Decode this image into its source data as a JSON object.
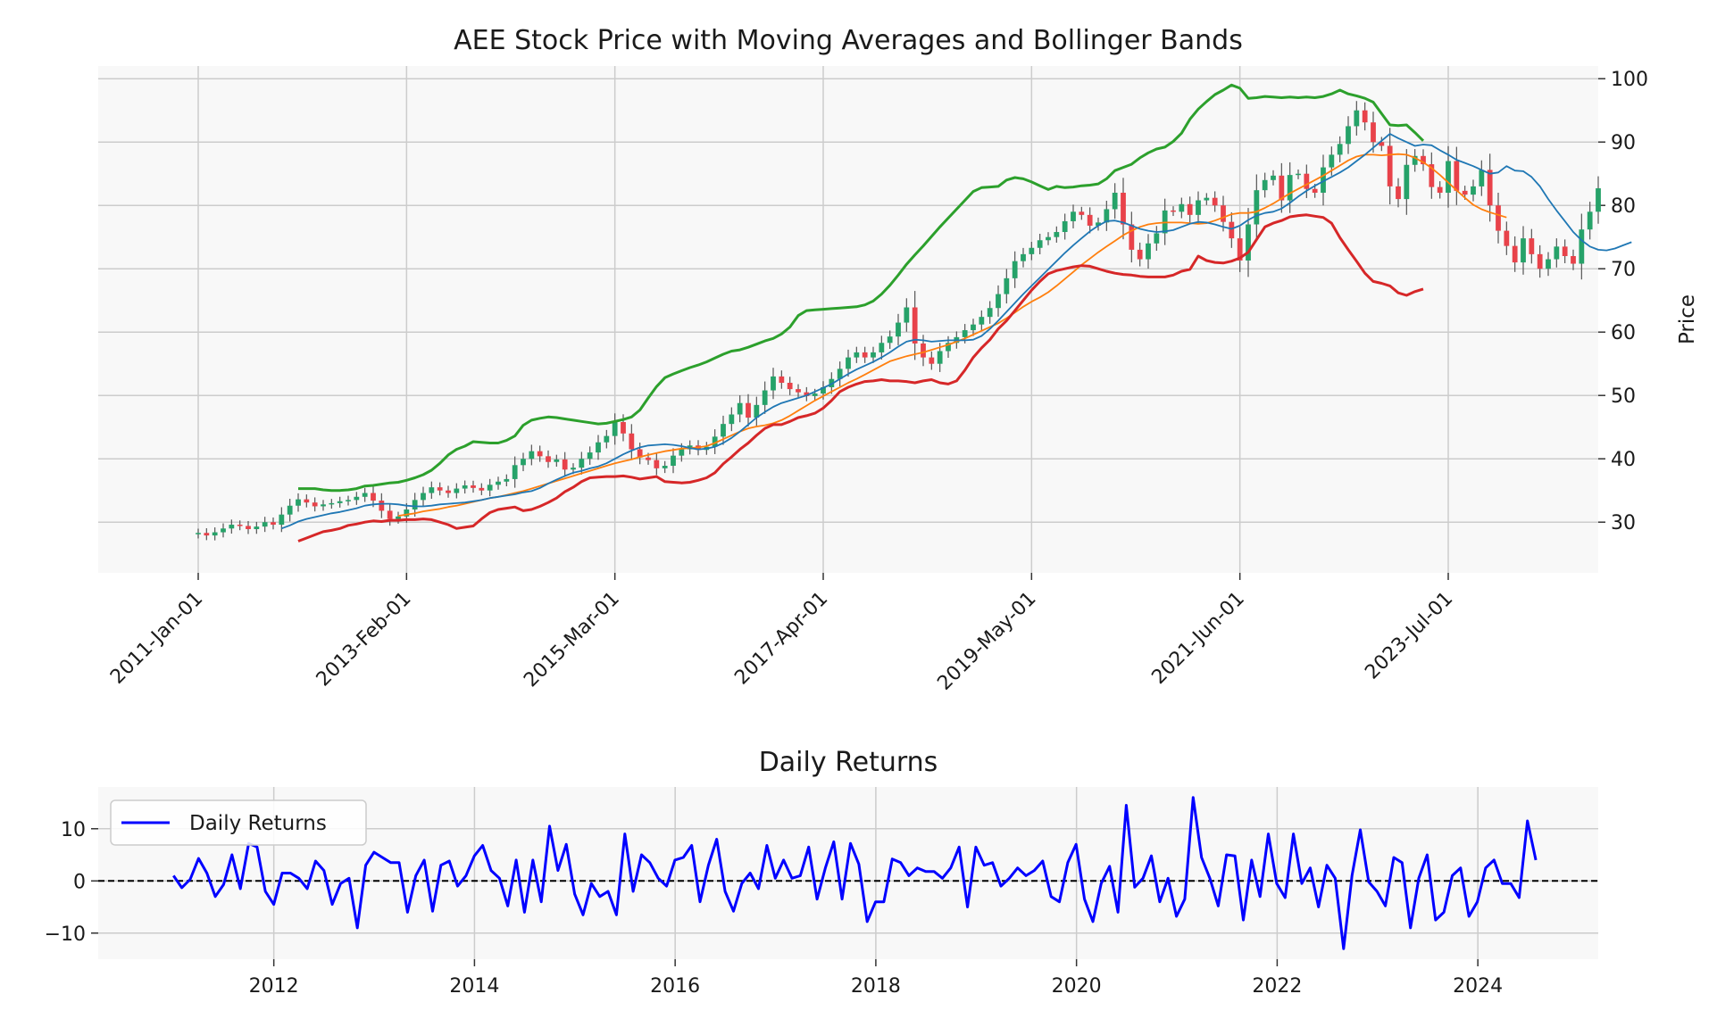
{
  "chart_data": [
    {
      "type": "candlestick",
      "title": "AEE Stock Price with Moving Averages and Bollinger Bands",
      "ylabel": "Price",
      "y_axis_side": "right",
      "ylim": [
        22,
        102
      ],
      "yticks": [
        30,
        40,
        50,
        60,
        70,
        80,
        90,
        100
      ],
      "xlim_months": [
        -12,
        168
      ],
      "xticks": [
        {
          "label": "2011-Jan-01",
          "month": 0
        },
        {
          "label": "2013-Feb-01",
          "month": 25
        },
        {
          "label": "2015-Mar-01",
          "month": 50
        },
        {
          "label": "2017-Apr-01",
          "month": 75
        },
        {
          "label": "2019-May-01",
          "month": 100
        },
        {
          "label": "2021-Jun-01",
          "month": 125
        },
        {
          "label": "2023-Jul-01",
          "month": 150
        }
      ],
      "grid": true,
      "colors": {
        "up": "#26a269",
        "down": "#e8424a",
        "wick": "#555555",
        "sma20": "#1f77b4",
        "sma50": "#ff7f0e",
        "bb_upper": "#2ca02c",
        "bb_lower": "#d62728"
      },
      "close": [
        28.3,
        27.9,
        28.4,
        29.0,
        29.6,
        29.4,
        28.9,
        29.3,
        30.0,
        29.6,
        31.2,
        32.6,
        33.6,
        33.1,
        32.5,
        32.8,
        33.0,
        33.3,
        33.5,
        34.0,
        34.6,
        33.4,
        31.8,
        30.5,
        30.9,
        32.0,
        33.5,
        34.6,
        35.5,
        35.0,
        34.6,
        35.3,
        35.8,
        35.4,
        35.0,
        35.9,
        36.4,
        36.8,
        39.0,
        40.0,
        41.2,
        40.4,
        39.5,
        39.9,
        38.3,
        38.6,
        40.0,
        41.0,
        42.6,
        43.6,
        45.8,
        44.0,
        41.5,
        40.2,
        39.8,
        38.5,
        38.9,
        40.5,
        41.5,
        42.1,
        41.4,
        41.9,
        43.5,
        45.5,
        47.0,
        48.8,
        46.5,
        48.5,
        50.8,
        53.0,
        52.0,
        51.0,
        50.5,
        49.9,
        50.3,
        51.3,
        52.6,
        54.2,
        56.0,
        56.8,
        56.0,
        56.8,
        58.3,
        59.3,
        61.5,
        63.9,
        58.2,
        56.0,
        55.0,
        57.0,
        58.3,
        59.2,
        60.3,
        61.2,
        62.4,
        63.8,
        66.0,
        68.5,
        71.2,
        72.3,
        73.3,
        74.5,
        75.0,
        75.8,
        77.5,
        79.0,
        78.5,
        76.8,
        77.3,
        79.4,
        82.0,
        77.0,
        73.0,
        71.5,
        74.0,
        75.6,
        79.2,
        79.0,
        80.2,
        78.5,
        80.8,
        81.2,
        80.0,
        77.4,
        74.8,
        71.3,
        77.0,
        82.4,
        84.0,
        84.7,
        80.8,
        84.8,
        85.0,
        82.6,
        82.0,
        86.0,
        88.0,
        89.7,
        92.5,
        95.0,
        93.1,
        90.0,
        89.4,
        83.0,
        81.0,
        86.4,
        87.8,
        86.5,
        82.9,
        82.0,
        87.0,
        82.3,
        81.7,
        83.0,
        85.6,
        80.0,
        76.0,
        73.6,
        71.0,
        74.8,
        72.3,
        70.0,
        71.5,
        73.5,
        72.0,
        70.8,
        76.2,
        79.0,
        82.7
      ],
      "sma20": {
        "start": 10,
        "values": [
          29.0,
          29.5,
          30.1,
          30.5,
          30.8,
          31.1,
          31.4,
          31.6,
          31.9,
          32.2,
          32.6,
          32.8,
          32.9,
          32.9,
          32.8,
          32.6,
          32.5,
          32.5,
          32.6,
          32.8,
          32.9,
          33.0,
          33.1,
          33.3,
          33.5,
          33.8,
          34.0,
          34.2,
          34.4,
          34.7,
          34.9,
          35.4,
          36.1,
          36.7,
          37.3,
          37.8,
          38.1,
          38.5,
          38.8,
          39.3,
          40.0,
          40.7,
          41.3,
          41.8,
          42.1,
          42.2,
          42.3,
          42.2,
          42.0,
          41.7,
          41.5,
          41.6,
          41.9,
          42.5,
          43.3,
          44.3,
          45.4,
          46.5,
          47.4,
          48.2,
          48.8,
          49.2,
          49.6,
          50.0,
          50.6,
          51.2,
          51.8,
          52.6,
          53.4,
          54.1,
          54.7,
          55.3,
          56.0,
          56.8,
          57.7,
          58.5,
          58.8,
          58.7,
          58.5,
          58.6,
          58.7,
          58.7,
          58.7,
          58.8,
          59.4,
          60.5,
          61.8,
          63.2,
          64.6,
          66.0,
          67.3,
          68.6,
          69.9,
          71.2,
          72.5,
          73.7,
          74.8,
          75.9,
          76.8,
          77.5,
          77.6,
          77.3,
          76.8,
          76.3,
          76.0,
          75.8,
          75.9,
          76.1,
          76.6,
          77.1,
          77.4,
          77.3,
          77.0,
          76.6,
          76.3,
          76.8,
          77.7,
          78.4,
          78.8,
          79.0,
          79.5,
          80.4,
          81.4,
          82.3,
          83.1,
          83.8,
          84.5,
          85.2,
          86.0,
          87.0,
          88.0,
          89.1,
          90.2,
          91.3,
          90.6,
          90.0,
          89.4,
          89.6,
          89.5,
          88.7,
          88.0,
          87.2,
          86.7,
          86.2,
          85.6,
          85.0,
          85.2,
          86.2,
          85.5,
          85.4,
          84.5,
          83.0,
          81.0,
          79.2,
          77.5,
          75.8,
          74.5,
          73.5,
          73.0,
          72.9,
          73.2,
          73.7,
          74.2
        ]
      },
      "sma50": {
        "start": 24,
        "values": [
          31.0,
          31.2,
          31.4,
          31.7,
          31.9,
          32.1,
          32.4,
          32.6,
          32.9,
          33.2,
          33.5,
          33.8,
          34.0,
          34.3,
          34.6,
          34.9,
          35.3,
          35.7,
          36.1,
          36.5,
          36.9,
          37.3,
          37.7,
          38.1,
          38.5,
          38.9,
          39.3,
          39.6,
          39.9,
          40.3,
          40.6,
          40.9,
          41.2,
          41.4,
          41.6,
          41.7,
          41.8,
          42.0,
          42.5,
          43.1,
          43.7,
          44.3,
          44.8,
          45.1,
          45.3,
          45.6,
          46.1,
          46.8,
          47.6,
          48.4,
          49.2,
          49.9,
          50.6,
          51.3,
          52.0,
          52.6,
          53.3,
          54.0,
          54.7,
          55.4,
          55.8,
          56.2,
          56.5,
          56.8,
          57.2,
          57.6,
          58.0,
          58.5,
          59.0,
          59.6,
          60.2,
          60.8,
          61.4,
          62.2,
          63.1,
          64.0,
          64.8,
          65.5,
          66.3,
          67.3,
          68.4,
          69.5,
          70.6,
          71.6,
          72.6,
          73.5,
          74.4,
          75.3,
          76.0,
          76.6,
          77.0,
          77.2,
          77.3,
          77.3,
          77.3,
          77.2,
          77.1,
          77.2,
          77.6,
          78.1,
          78.6,
          78.8,
          78.8,
          79.0,
          79.6,
          80.3,
          81.1,
          81.9,
          82.6,
          83.3,
          84.0,
          84.7,
          85.5,
          86.3,
          87.1,
          87.7,
          88.0,
          88.0,
          87.9,
          88.0,
          88.1,
          88.0,
          87.5,
          86.8,
          85.9,
          84.8,
          83.6,
          82.4,
          81.2,
          80.1,
          79.4,
          78.9,
          78.5,
          78.1
        ]
      },
      "bb_upper": {
        "start": 12,
        "values": [
          35.3,
          35.3,
          35.3,
          35.1,
          35.0,
          35.0,
          35.1,
          35.3,
          35.7,
          35.8,
          36.0,
          36.2,
          36.3,
          36.6,
          37.0,
          37.5,
          38.2,
          39.3,
          40.6,
          41.5,
          42.0,
          42.7,
          42.6,
          42.5,
          42.5,
          42.9,
          43.6,
          45.3,
          46.1,
          46.4,
          46.6,
          46.5,
          46.3,
          46.1,
          45.9,
          45.7,
          45.5,
          45.6,
          45.9,
          46.2,
          46.6,
          47.7,
          49.6,
          51.4,
          52.8,
          53.4,
          53.9,
          54.4,
          54.8,
          55.3,
          55.9,
          56.5,
          57.0,
          57.2,
          57.6,
          58.1,
          58.6,
          59.0,
          59.7,
          60.8,
          62.6,
          63.4,
          63.5,
          63.6,
          63.7,
          63.8,
          63.9,
          64.0,
          64.3,
          64.9,
          66.0,
          67.4,
          69.0,
          70.7,
          72.2,
          73.6,
          75.1,
          76.6,
          78.0,
          79.4,
          80.8,
          82.2,
          82.8,
          82.9,
          83.0,
          84.0,
          84.4,
          84.2,
          83.7,
          83.1,
          82.5,
          83.0,
          82.8,
          82.9,
          83.1,
          83.2,
          83.4,
          84.2,
          85.5,
          86.0,
          86.5,
          87.5,
          88.3,
          88.9,
          89.2,
          90.1,
          91.4,
          93.6,
          95.2,
          96.4,
          97.5,
          98.2,
          99.0,
          98.5,
          96.9,
          97.0,
          97.2,
          97.1,
          97.0,
          97.1,
          97.0,
          97.1,
          97.0,
          97.2,
          97.6,
          98.2,
          97.6,
          97.3,
          96.9,
          96.3,
          94.5,
          92.7,
          92.6,
          92.7,
          91.5,
          90.2
        ]
      },
      "bb_lower": {
        "start": 12,
        "values": [
          27.0,
          27.5,
          28.0,
          28.5,
          28.7,
          29.0,
          29.5,
          29.7,
          30.0,
          30.2,
          30.1,
          30.3,
          30.3,
          30.4,
          30.4,
          30.5,
          30.4,
          30.0,
          29.6,
          29.0,
          29.2,
          29.4,
          30.5,
          31.5,
          32.0,
          32.2,
          32.4,
          31.8,
          32.0,
          32.5,
          33.1,
          33.8,
          34.8,
          35.5,
          36.4,
          37.0,
          37.1,
          37.2,
          37.2,
          37.3,
          37.1,
          36.8,
          37.0,
          37.2,
          36.4,
          36.3,
          36.2,
          36.3,
          36.6,
          37.0,
          37.8,
          39.2,
          40.3,
          41.5,
          42.5,
          43.7,
          44.8,
          45.4,
          45.4,
          45.9,
          46.5,
          46.8,
          47.2,
          48.0,
          49.2,
          50.6,
          51.3,
          51.8,
          52.2,
          52.3,
          52.5,
          52.3,
          52.3,
          52.2,
          52.0,
          52.3,
          52.5,
          52.0,
          51.8,
          52.3,
          54.0,
          56.0,
          57.5,
          58.8,
          60.5,
          61.8,
          63.4,
          65.0,
          66.6,
          68.0,
          69.2,
          69.7,
          70.0,
          70.3,
          70.5,
          70.4,
          70.0,
          69.6,
          69.3,
          69.1,
          69.0,
          68.8,
          68.7,
          68.7,
          68.7,
          69.0,
          69.6,
          69.9,
          72.0,
          71.3,
          71.0,
          70.9,
          71.2,
          71.7,
          72.6,
          74.6,
          76.6,
          77.2,
          77.6,
          78.2,
          78.4,
          78.5,
          78.3,
          78.1,
          77.2,
          74.9,
          73.0,
          71.2,
          69.3,
          68.0,
          67.7,
          67.3,
          66.2,
          65.8,
          66.4,
          66.8
        ]
      },
      "date_range": {
        "start": "2011-01",
        "end": "2024-08"
      }
    },
    {
      "type": "line",
      "title": "Daily Returns",
      "xlabel": "",
      "ylabel": "",
      "ylim": [
        -15,
        18
      ],
      "yticks": [
        {
          "v": -10,
          "label": "−10"
        },
        {
          "v": 0,
          "label": "0"
        },
        {
          "v": 10,
          "label": "10"
        }
      ],
      "xlim": [
        2010.25,
        2025.2
      ],
      "xticks": [
        2012,
        2014,
        2016,
        2018,
        2020,
        2022,
        2024
      ],
      "grid": true,
      "legend": {
        "position": "top-left",
        "entries": [
          "Daily Returns"
        ]
      },
      "reference_line": {
        "y": 0,
        "style": "dashed",
        "color": "#000000"
      },
      "series": [
        {
          "name": "Daily Returns",
          "color": "#0000ff",
          "x_start": 2011.0,
          "x_step": 0.0833,
          "values": [
            1.0,
            -1.3,
            0.3,
            4.3,
            1.5,
            -3.0,
            -0.7,
            5.0,
            -1.5,
            7.2,
            6.5,
            -2.0,
            -4.5,
            1.5,
            1.5,
            0.5,
            -1.5,
            3.8,
            2.0,
            -4.5,
            -0.5,
            0.5,
            -9.0,
            3.0,
            5.5,
            4.5,
            3.5,
            3.5,
            -6.0,
            1.0,
            4.0,
            -5.8,
            3.0,
            3.8,
            -1.0,
            1.0,
            4.8,
            6.8,
            2.0,
            0.5,
            -4.8,
            4.0,
            -6.0,
            4.0,
            -4.0,
            10.5,
            2.0,
            7.0,
            -2.5,
            -6.5,
            -0.5,
            -3.0,
            -2.0,
            -6.5,
            9.0,
            -2.0,
            5.0,
            3.5,
            0.5,
            -1.0,
            4.0,
            4.5,
            6.8,
            -4.0,
            3.0,
            8.0,
            -2.0,
            -5.8,
            -0.5,
            1.5,
            -1.5,
            6.8,
            0.5,
            4.0,
            0.5,
            1.0,
            6.5,
            -3.5,
            2.5,
            7.5,
            -3.5,
            7.2,
            3.2,
            -7.8,
            -4.0,
            -4.0,
            4.2,
            3.5,
            1.0,
            2.5,
            1.8,
            1.8,
            0.5,
            2.5,
            6.5,
            -5.0,
            6.5,
            3.0,
            3.5,
            -1.0,
            0.5,
            2.5,
            1.0,
            2.0,
            3.8,
            -3.0,
            -4.0,
            3.5,
            7.0,
            -3.5,
            -7.8,
            -0.5,
            2.8,
            -6.0,
            14.5,
            -1.2,
            0.5,
            4.8,
            -4.0,
            0.5,
            -6.8,
            -3.5,
            16.0,
            4.5,
            0.5,
            -4.8,
            5.0,
            4.8,
            -7.5,
            4.0,
            -3.0,
            9.0,
            -0.5,
            -3.2,
            9.0,
            -0.5,
            2.5,
            -5.0,
            3.0,
            0.5,
            -13.0,
            1.0,
            9.8,
            -0.2,
            -2.0,
            -4.8,
            4.5,
            3.5,
            -9.0,
            0.5,
            5.0,
            -7.5,
            -6.0,
            1.0,
            2.5,
            -6.8,
            -4.0,
            2.5,
            4.0,
            -0.5,
            -0.5,
            -3.2,
            11.5,
            4.0
          ]
        }
      ]
    }
  ]
}
